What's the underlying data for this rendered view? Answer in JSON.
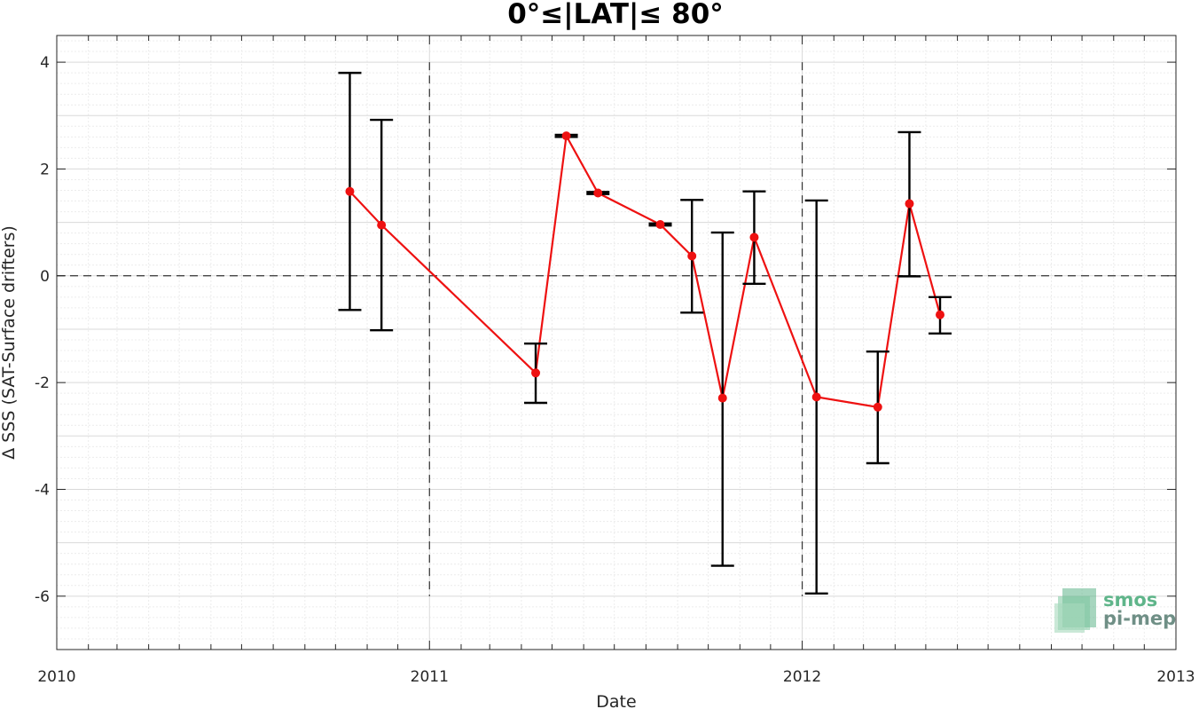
{
  "chart_data": {
    "type": "line",
    "title": "0°≤|LAT|≤ 80°",
    "xlabel": "Date",
    "ylabel": "Δ SSS (SAT-Surface drifters)",
    "xlim": [
      "2010-01-01",
      "2013-01-01"
    ],
    "ylim": [
      -7,
      4.5
    ],
    "x_ticks": [
      "2010",
      "2011",
      "2012",
      "2013"
    ],
    "y_ticks": [
      4,
      2,
      0,
      -2,
      -4,
      -6
    ],
    "grid": true,
    "reference_lines": {
      "horizontal_y": 0,
      "vertical_x": [
        "2011-01-01",
        "2012-01-01"
      ]
    },
    "series": [
      {
        "color": "#ee1111",
        "points": [
          {
            "x": "2010-10-15",
            "y": 1.58,
            "err_low": -0.64,
            "err_high": 3.8
          },
          {
            "x": "2010-11-15",
            "y": 0.95,
            "err_low": -1.02,
            "err_high": 2.92
          },
          {
            "x": "2011-04-15",
            "y": -1.82,
            "err_low": -2.38,
            "err_high": -1.27
          },
          {
            "x": "2011-05-15",
            "y": 2.62,
            "err_low": 2.6,
            "err_high": 2.64
          },
          {
            "x": "2011-06-15",
            "y": 1.55,
            "err_low": 1.53,
            "err_high": 1.57
          },
          {
            "x": "2011-08-15",
            "y": 0.96,
            "err_low": 0.94,
            "err_high": 0.98
          },
          {
            "x": "2011-09-15",
            "y": 0.37,
            "err_low": -0.69,
            "err_high": 1.42
          },
          {
            "x": "2011-10-15",
            "y": -2.29,
            "err_low": -5.43,
            "err_high": 0.81
          },
          {
            "x": "2011-11-15",
            "y": 0.72,
            "err_low": -0.15,
            "err_high": 1.58
          },
          {
            "x": "2012-01-15",
            "y": -2.27,
            "err_low": -5.95,
            "err_high": 1.41
          },
          {
            "x": "2012-03-15",
            "y": -2.46,
            "err_low": -3.51,
            "err_high": -1.42
          },
          {
            "x": "2012-04-15",
            "y": 1.35,
            "err_low": -0.01,
            "err_high": 2.69
          },
          {
            "x": "2012-05-15",
            "y": -0.73,
            "err_low": -1.08,
            "err_high": -0.4
          }
        ]
      }
    ]
  },
  "logo": {
    "line1": "smos",
    "line2": "pi-mep"
  },
  "colors": {
    "series": "#ee1111",
    "errorbar": "#000000",
    "grid_major": "#d9d9d9",
    "grid_minor": "#ececec",
    "logo_green": "#5fb58a",
    "logo_gray": "#6f8f86"
  }
}
